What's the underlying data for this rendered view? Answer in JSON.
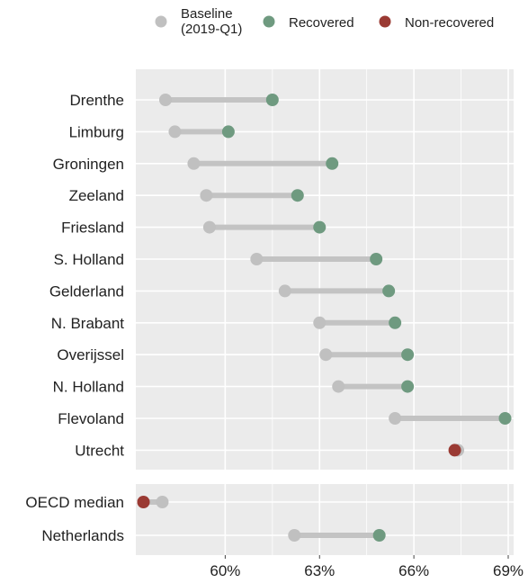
{
  "legend": {
    "baseline_line1": "Baseline",
    "baseline_line2": "(2019-Q1)",
    "recovered": "Recovered",
    "nonrecovered": "Non-recovered"
  },
  "colors": {
    "baseline": "#c0c0c0",
    "recovered": "#6f9a80",
    "nonrecovered": "#9a3a33",
    "connector": "#c3c3c3",
    "panel": "#ebebeb",
    "grid": "#ffffff"
  },
  "chart_data": {
    "type": "dumbbell",
    "x_ticks": [
      "60%",
      "63%",
      "66%",
      "69%"
    ],
    "x_tick_values": [
      60,
      63,
      66,
      69
    ],
    "xlim": [
      57.1,
      69.2
    ],
    "grid": true,
    "legend_position": "top",
    "panels": [
      {
        "rows": [
          {
            "label": "Drenthe",
            "baseline": 58.1,
            "current": 61.5,
            "status": "recovered"
          },
          {
            "label": "Limburg",
            "baseline": 58.4,
            "current": 60.1,
            "status": "recovered"
          },
          {
            "label": "Groningen",
            "baseline": 59.0,
            "current": 63.4,
            "status": "recovered"
          },
          {
            "label": "Zeeland",
            "baseline": 59.4,
            "current": 62.3,
            "status": "recovered"
          },
          {
            "label": "Friesland",
            "baseline": 59.5,
            "current": 63.0,
            "status": "recovered"
          },
          {
            "label": "S. Holland",
            "baseline": 61.0,
            "current": 64.8,
            "status": "recovered"
          },
          {
            "label": "Gelderland",
            "baseline": 61.9,
            "current": 65.2,
            "status": "recovered"
          },
          {
            "label": "N. Brabant",
            "baseline": 63.0,
            "current": 65.4,
            "status": "recovered"
          },
          {
            "label": "Overijssel",
            "baseline": 63.2,
            "current": 65.8,
            "status": "recovered"
          },
          {
            "label": "N. Holland",
            "baseline": 63.6,
            "current": 65.8,
            "status": "recovered"
          },
          {
            "label": "Flevoland",
            "baseline": 65.4,
            "current": 68.9,
            "status": "recovered"
          },
          {
            "label": "Utrecht",
            "baseline": 67.4,
            "current": 67.3,
            "status": "nonrecovered"
          }
        ]
      },
      {
        "rows": [
          {
            "label": "OECD median",
            "baseline": 58.0,
            "current": 57.4,
            "status": "nonrecovered"
          },
          {
            "label": "Netherlands",
            "baseline": 62.2,
            "current": 64.9,
            "status": "recovered"
          }
        ]
      }
    ]
  }
}
